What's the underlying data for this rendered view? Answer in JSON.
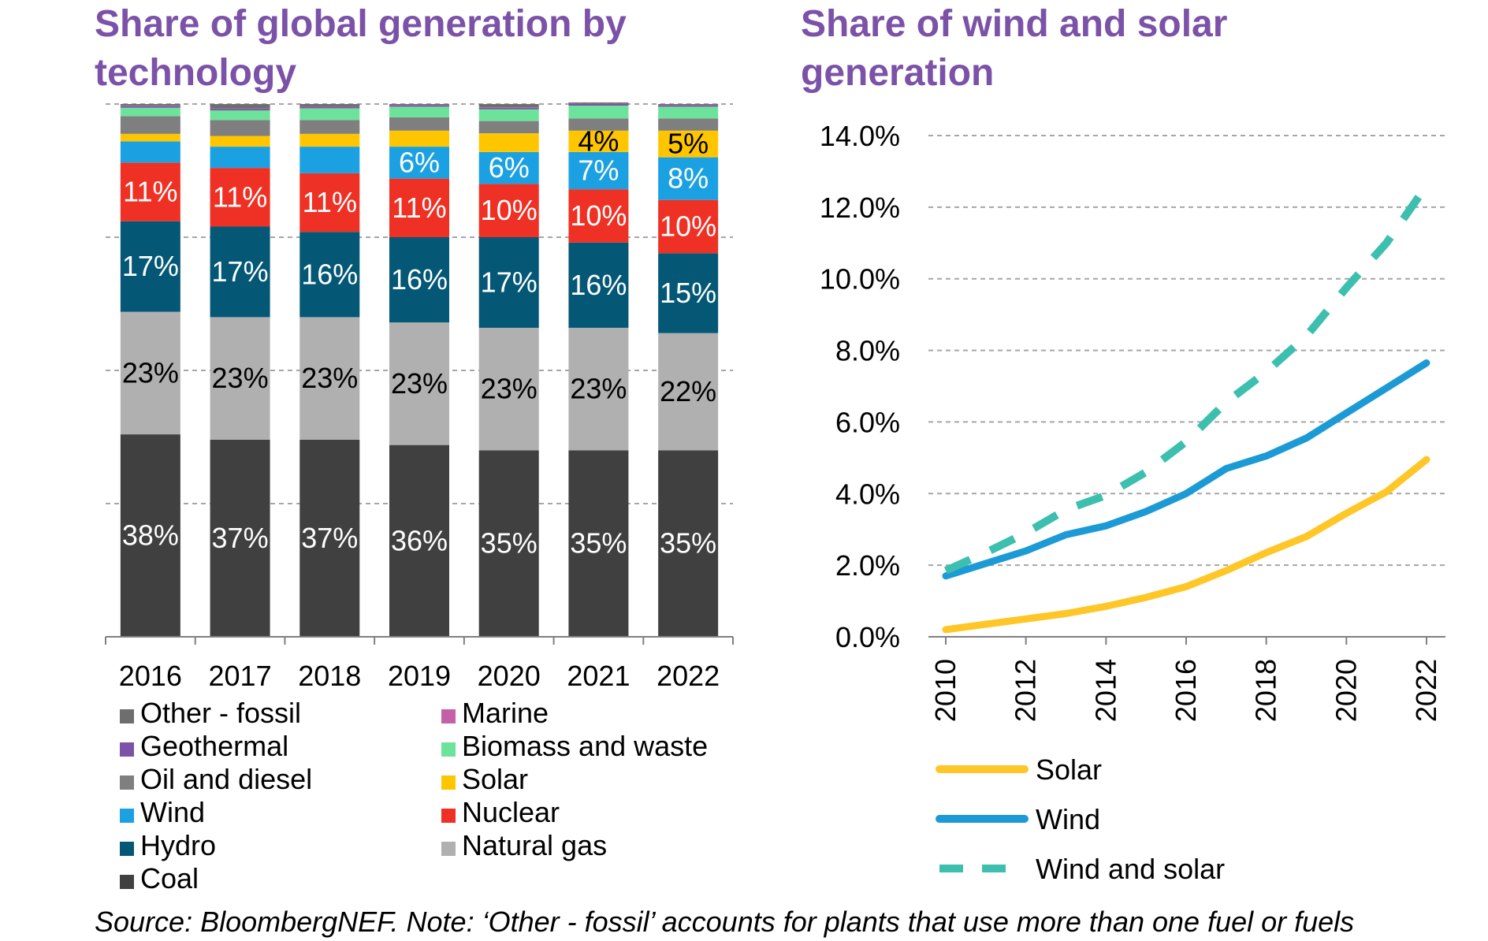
{
  "titles": {
    "left": "Share of global generation by technology",
    "right": "Share of wind and solar generation"
  },
  "source_note": "Source: BloombergNEF. Note: ‘Other - fossil’ accounts for plants that use more than one fuel or fuels",
  "chart_data": [
    {
      "type": "bar",
      "stacked": true,
      "title": "Share of global generation by technology",
      "categories": [
        "2016",
        "2017",
        "2018",
        "2019",
        "2020",
        "2021",
        "2022"
      ],
      "ylim": [
        0,
        100
      ],
      "grid": true,
      "legend_position": "bottom",
      "series": [
        {
          "name": "Coal",
          "color": "#404040",
          "label_color": "#ffffff",
          "values": [
            38,
            37,
            37,
            36,
            35,
            35,
            35
          ],
          "labels": [
            "38%",
            "37%",
            "37%",
            "36%",
            "35%",
            "35%",
            "35%"
          ]
        },
        {
          "name": "Natural gas",
          "color": "#b0b0b0",
          "label_color": "#000000",
          "values": [
            23,
            23,
            23,
            23,
            23,
            23,
            22
          ],
          "labels": [
            "23%",
            "23%",
            "23%",
            "23%",
            "23%",
            "23%",
            "22%"
          ]
        },
        {
          "name": "Hydro",
          "color": "#045875",
          "label_color": "#ffffff",
          "values": [
            17,
            17,
            16,
            16,
            17,
            16,
            15
          ],
          "labels": [
            "17%",
            "17%",
            "16%",
            "16%",
            "17%",
            "16%",
            "15%"
          ]
        },
        {
          "name": "Nuclear",
          "color": "#ee3124",
          "label_color": "#ffffff",
          "values": [
            11,
            11,
            11,
            11,
            10,
            10,
            10
          ],
          "labels": [
            "11%",
            "11%",
            "11%",
            "11%",
            "10%",
            "10%",
            "10%"
          ]
        },
        {
          "name": "Wind",
          "color": "#1ba1e2",
          "label_color": "#ffffff",
          "values": [
            4,
            4,
            5,
            6,
            6,
            7,
            8
          ],
          "labels": [
            "",
            "",
            "",
            "6%",
            "6%",
            "7%",
            "8%"
          ]
        },
        {
          "name": "Solar",
          "color": "#ffc600",
          "label_color": "#000000",
          "values": [
            1.4,
            2,
            2.4,
            3,
            3.5,
            4,
            5
          ],
          "labels": [
            "",
            "",
            "",
            "",
            "",
            "4%",
            "5%"
          ]
        },
        {
          "name": "Oil and diesel",
          "color": "#7f7f7f",
          "label_color": "#ffffff",
          "values": [
            3.3,
            3,
            2.6,
            2.5,
            2.3,
            2.3,
            2.3
          ],
          "labels": [
            "",
            "",
            "",
            "",
            "",
            "",
            ""
          ]
        },
        {
          "name": "Biomass and waste",
          "color": "#6ce29b",
          "label_color": "#000000",
          "values": [
            1.6,
            1.8,
            2.2,
            2,
            2.2,
            2.4,
            2.2
          ],
          "labels": [
            "",
            "",
            "",
            "",
            "",
            "",
            ""
          ]
        },
        {
          "name": "Geothermal",
          "color": "#7b52a8",
          "label_color": "#ffffff",
          "values": [
            0.3,
            0.3,
            0.3,
            0.3,
            0.3,
            0.3,
            0.3
          ],
          "labels": [
            "",
            "",
            "",
            "",
            "",
            "",
            ""
          ]
        },
        {
          "name": "Marine",
          "color": "#c460a7",
          "label_color": "#ffffff",
          "values": [
            0.05,
            0.05,
            0.05,
            0.05,
            0.05,
            0.05,
            0.05
          ],
          "labels": [
            "",
            "",
            "",
            "",
            "",
            "",
            ""
          ]
        },
        {
          "name": "Other - fossil",
          "color": "#6e6e6e",
          "label_color": "#ffffff",
          "values": [
            0.35,
            0.85,
            0.45,
            0.15,
            0.65,
            0.25,
            0.15
          ],
          "labels": [
            "",
            "",
            "",
            "",
            "",
            "",
            ""
          ]
        }
      ],
      "legend": [
        [
          "Other - fossil",
          "Marine"
        ],
        [
          "Geothermal",
          "Biomass and waste"
        ],
        [
          "Oil and diesel",
          "Solar"
        ],
        [
          "Wind",
          "Nuclear"
        ],
        [
          "Hydro",
          "Natural gas"
        ],
        [
          "Coal",
          ""
        ]
      ]
    },
    {
      "type": "line",
      "title": "Share of wind and solar generation",
      "x": [
        2010,
        2011,
        2012,
        2013,
        2014,
        2015,
        2016,
        2017,
        2018,
        2019,
        2020,
        2021,
        2022
      ],
      "xticks": [
        "2010",
        "2012",
        "2014",
        "2016",
        "2018",
        "2020",
        "2022"
      ],
      "yticks": [
        "0.0%",
        "2.0%",
        "4.0%",
        "6.0%",
        "8.0%",
        "10.0%",
        "12.0%",
        "14.0%"
      ],
      "ylim": [
        0,
        14
      ],
      "grid": true,
      "legend_position": "bottom",
      "series": [
        {
          "name": "Solar",
          "color": "#ffc627",
          "dashed": false,
          "values": [
            0.2,
            0.35,
            0.5,
            0.65,
            0.85,
            1.1,
            1.4,
            1.85,
            2.35,
            2.8,
            3.45,
            4.05,
            4.95
          ]
        },
        {
          "name": "Wind",
          "color": "#1c9ad6",
          "dashed": false,
          "values": [
            1.7,
            2.05,
            2.4,
            2.85,
            3.1,
            3.5,
            4.0,
            4.7,
            5.05,
            5.55,
            6.25,
            6.95,
            7.65
          ]
        },
        {
          "name": "Wind and solar",
          "color": "#3cbfae",
          "dashed": true,
          "values": [
            1.85,
            2.35,
            2.9,
            3.55,
            3.95,
            4.6,
            5.45,
            6.55,
            7.4,
            8.4,
            9.75,
            11.0,
            12.6
          ]
        }
      ]
    }
  ]
}
